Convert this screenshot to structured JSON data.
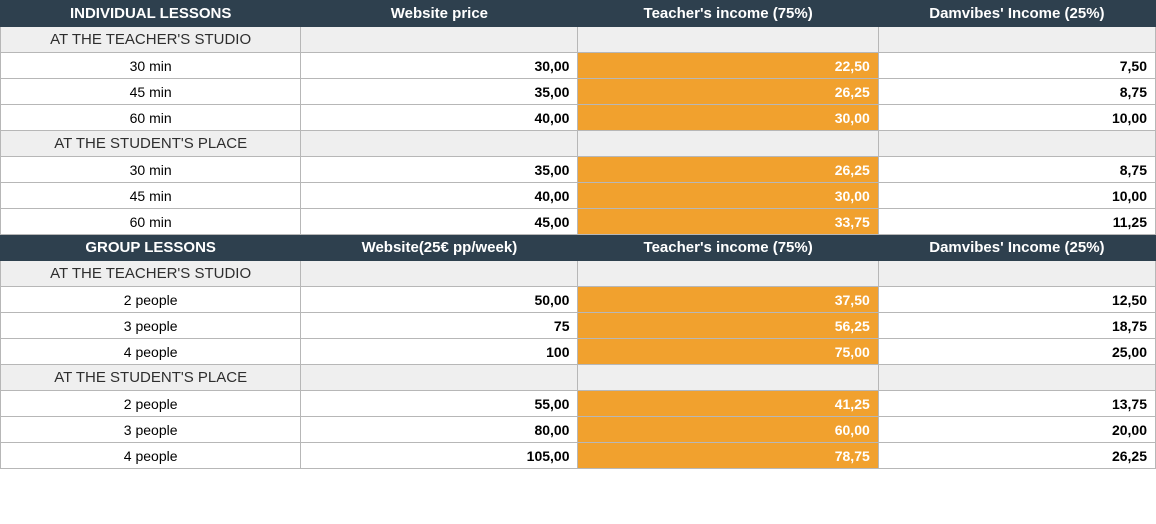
{
  "colors": {
    "header_bg": "#2e404e",
    "header_fg": "#ffffff",
    "section_bg": "#efefef",
    "highlight_bg": "#f1a12e",
    "highlight_fg": "#ffffff",
    "border": "#b7b7b7",
    "text": "#000000"
  },
  "headers": {
    "individual": [
      "INDIVIDUAL LESSONS",
      "Website price",
      "Teacher's income (75%)",
      "Damvibes' Income (25%)"
    ],
    "group": [
      "GROUP LESSONS",
      "Website(25€ pp/week)",
      "Teacher's income (75%)",
      "Damvibes' Income (25%)"
    ]
  },
  "sections": {
    "teacher_studio": "AT THE TEACHER'S STUDIO",
    "student_place": "AT THE STUDENT'S PLACE"
  },
  "individual": {
    "teacher_studio": [
      {
        "label": "30 min",
        "price": "30,00",
        "teacher": "22,50",
        "damvibes": "7,50"
      },
      {
        "label": "45 min",
        "price": "35,00",
        "teacher": "26,25",
        "damvibes": "8,75"
      },
      {
        "label": "60 min",
        "price": "40,00",
        "teacher": "30,00",
        "damvibes": "10,00"
      }
    ],
    "student_place": [
      {
        "label": "30 min",
        "price": "35,00",
        "teacher": "26,25",
        "damvibes": "8,75"
      },
      {
        "label": "45 min",
        "price": "40,00",
        "teacher": "30,00",
        "damvibes": "10,00"
      },
      {
        "label": "60 min",
        "price": "45,00",
        "teacher": "33,75",
        "damvibes": "11,25"
      }
    ]
  },
  "group": {
    "teacher_studio": [
      {
        "label": "2 people",
        "price": "50,00",
        "teacher": "37,50",
        "damvibes": "12,50"
      },
      {
        "label": "3 people",
        "price": "75",
        "teacher": "56,25",
        "damvibes": "18,75"
      },
      {
        "label": "4 people",
        "price": "100",
        "teacher": "75,00",
        "damvibes": "25,00"
      }
    ],
    "student_place": [
      {
        "label": "2 people",
        "price": "55,00",
        "teacher": "41,25",
        "damvibes": "13,75"
      },
      {
        "label": "3 people",
        "price": "80,00",
        "teacher": "60,00",
        "damvibes": "20,00"
      },
      {
        "label": "4 people",
        "price": "105,00",
        "teacher": "78,75",
        "damvibes": "26,25"
      }
    ]
  }
}
